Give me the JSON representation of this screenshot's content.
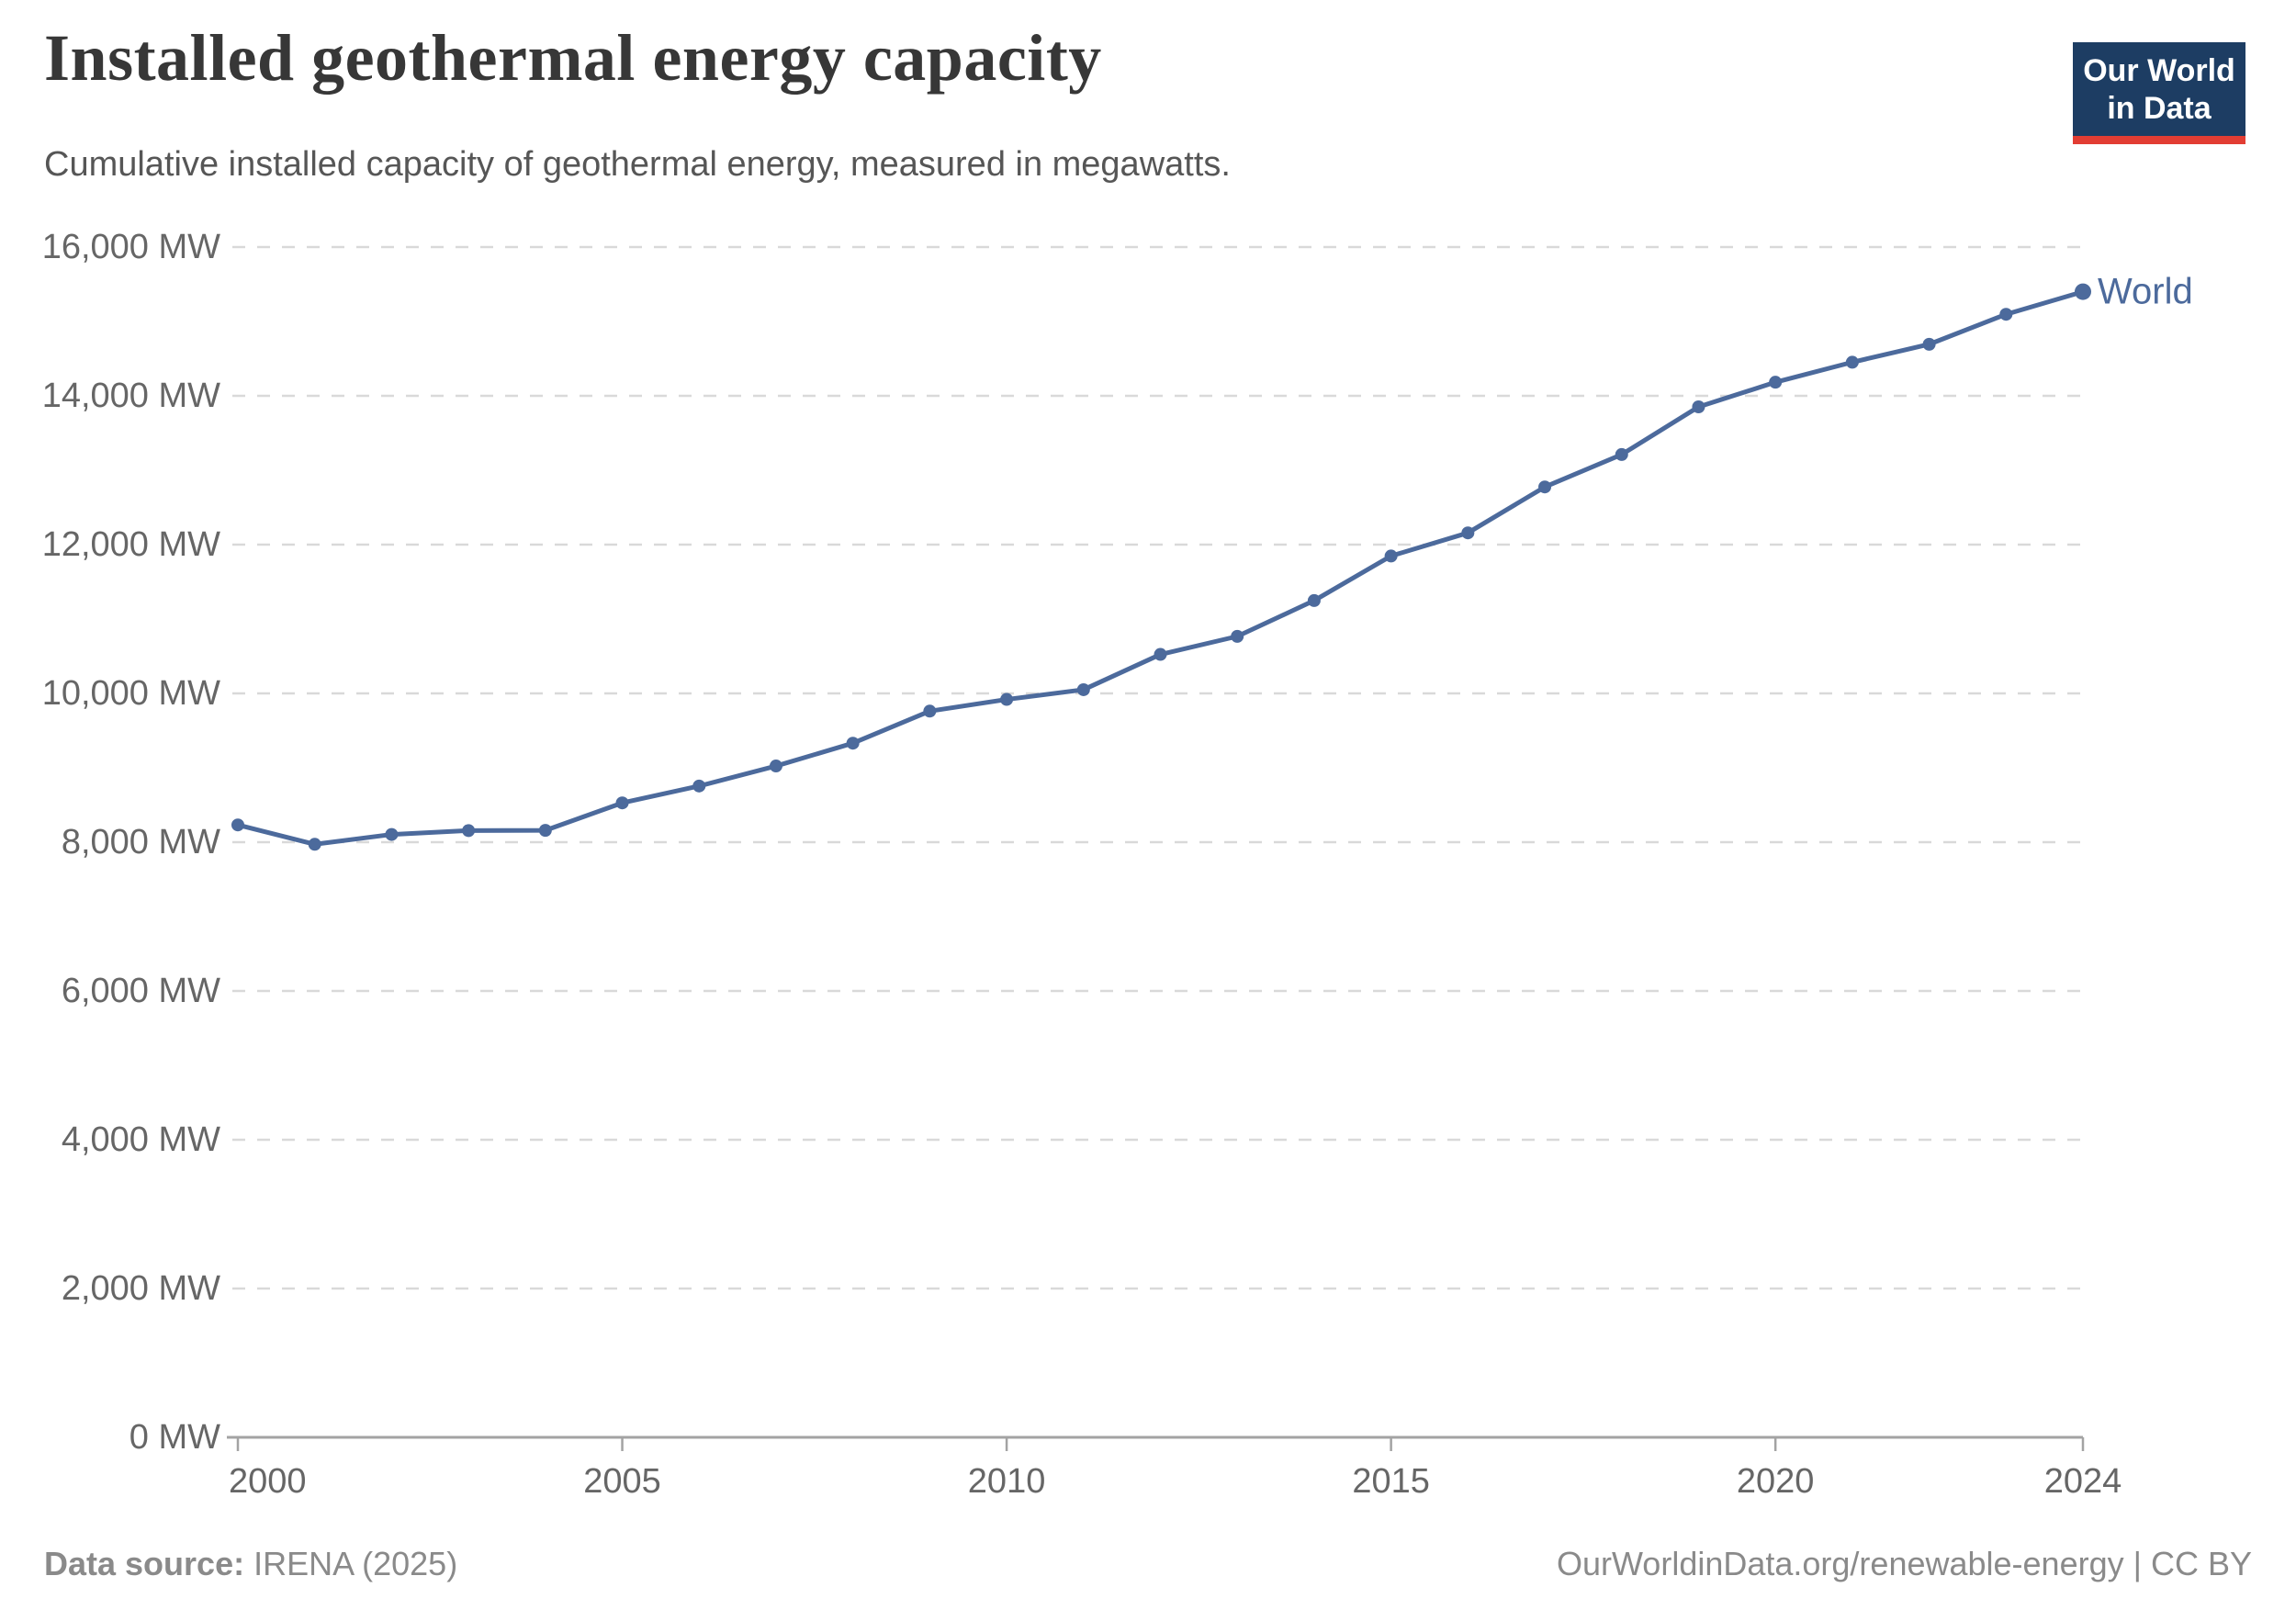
{
  "header": {
    "title": "Installed geothermal energy capacity",
    "subtitle": "Cumulative installed capacity of geothermal energy, measured in megawatts."
  },
  "logo": {
    "line1": "Our World",
    "line2": "in Data",
    "bg_color": "#1d3d63",
    "accent_color": "#e23d33"
  },
  "chart_data": {
    "type": "line",
    "title": "Installed geothermal energy capacity",
    "xlabel": "",
    "ylabel": "",
    "unit": "MW",
    "xlim": [
      2000,
      2024
    ],
    "ylim": [
      0,
      16000
    ],
    "grid": "horizontal-dashed",
    "legend_position": "end-of-line",
    "series": [
      {
        "name": "World",
        "color": "#4c6a9c",
        "x": [
          2000,
          2001,
          2002,
          2003,
          2004,
          2005,
          2006,
          2007,
          2008,
          2009,
          2010,
          2011,
          2012,
          2013,
          2014,
          2015,
          2016,
          2017,
          2018,
          2019,
          2020,
          2021,
          2022,
          2023,
          2024
        ],
        "values": [
          8232,
          7972,
          8104,
          8156,
          8159,
          8528,
          8755,
          9024,
          9331,
          9762,
          9919,
          10050,
          10524,
          10767,
          11248,
          11847,
          12158,
          12775,
          13211,
          13852,
          14183,
          14452,
          14693,
          15096,
          15400
        ]
      }
    ],
    "xticks": [
      {
        "value": 2000,
        "label": "2000"
      },
      {
        "value": 2005,
        "label": "2005"
      },
      {
        "value": 2010,
        "label": "2010"
      },
      {
        "value": 2015,
        "label": "2015"
      },
      {
        "value": 2020,
        "label": "2020"
      },
      {
        "value": 2024,
        "label": "2024"
      }
    ],
    "yticks": [
      {
        "value": 0,
        "label": "0 MW"
      },
      {
        "value": 2000,
        "label": "2,000 MW"
      },
      {
        "value": 4000,
        "label": "4,000 MW"
      },
      {
        "value": 6000,
        "label": "6,000 MW"
      },
      {
        "value": 8000,
        "label": "8,000 MW"
      },
      {
        "value": 10000,
        "label": "10,000 MW"
      },
      {
        "value": 12000,
        "label": "12,000 MW"
      },
      {
        "value": 14000,
        "label": "14,000 MW"
      },
      {
        "value": 16000,
        "label": "16,000 MW"
      }
    ],
    "grid_color": "#d9d9d9",
    "axis_color": "#a3a3a3",
    "tick_label_color": "#666666"
  },
  "footer": {
    "source_label": "Data source:",
    "source_value": " IRENA (2025)",
    "right_text": "OurWorldinData.org/renewable-energy | CC BY"
  }
}
